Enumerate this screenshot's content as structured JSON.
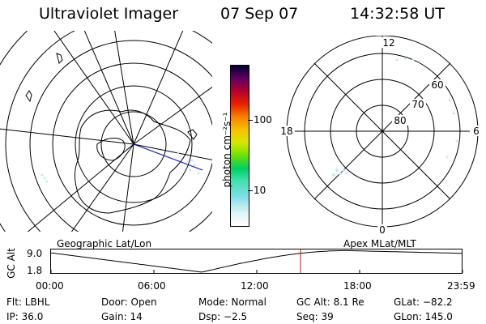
{
  "header": {
    "instrument": "Ultraviolet Imager",
    "date": "07 Sep 07",
    "time": "14:32:58 UT"
  },
  "colorbar": {
    "unit_label": "photon cm⁻²s⁻¹",
    "tick_100": "100",
    "tick_10": "10"
  },
  "polar_plot": {
    "lat_labels": {
      "l60": "60",
      "l70": "70",
      "l80": "80"
    },
    "mlt_labels": {
      "top": "12",
      "right": "6",
      "bottom": "0",
      "left": "18"
    }
  },
  "timeline": {
    "left_title": "Geographic Lat/Lon",
    "right_title": "Apex MLat/MLT",
    "ylabel": "GC Alt",
    "y_top": "9.0",
    "y_bottom": "1.8",
    "xticks": [
      "00:00",
      "06:00",
      "12:00",
      "18:00",
      "23:59"
    ],
    "marker_time_hours": 14.55
  },
  "info": {
    "filter": "Flt: LBHL",
    "door": "Door: Open",
    "mode": "Mode: Normal",
    "gc_alt": "GC Alt: 8.1 Re",
    "glat": "GLat: −82.2",
    "ip": "IP: 36.0",
    "gain": "Gain: 14",
    "dsp": "Dsp:    −2.5",
    "seq": "Seq: 39",
    "glon": "GLon: 145.0"
  },
  "colors": {
    "marker": "#d01010",
    "track_blue": "#1010c0"
  }
}
